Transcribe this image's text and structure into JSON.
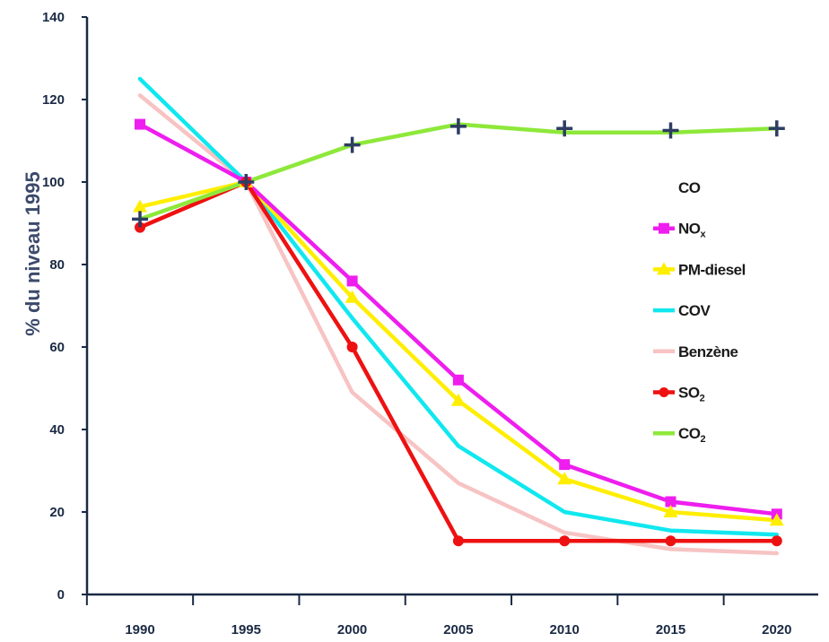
{
  "chart_data": {
    "type": "line",
    "title": "",
    "xlabel": "",
    "ylabel": "% du niveau 1995",
    "ylim": [
      0,
      140
    ],
    "yticks": [
      "0",
      "20",
      "40",
      "60",
      "80",
      "100",
      "120",
      "140"
    ],
    "categories": [
      "1990",
      "1995",
      "2000",
      "2005",
      "2010",
      "2015",
      "2020"
    ],
    "grid": false,
    "legend_position": "right",
    "series": [
      {
        "name": "CO",
        "color": "#2d3d63",
        "marker": "plus",
        "values": [
          91,
          100,
          109,
          113.5,
          113,
          112.5,
          113
        ]
      },
      {
        "name": "NOx",
        "label_main": "NO",
        "label_sub": "x",
        "color": "#ee1eee",
        "marker": "square",
        "values": [
          114,
          100,
          76,
          52,
          31.5,
          22.5,
          19.5
        ]
      },
      {
        "name": "PM-diesel",
        "color": "#ffee00",
        "marker": "triangle",
        "values": [
          94,
          100,
          72,
          47,
          28,
          20,
          18
        ]
      },
      {
        "name": "COV",
        "color": "#11e7ef",
        "marker": "none",
        "values": [
          125,
          100,
          67,
          36,
          20,
          15.5,
          14.5
        ]
      },
      {
        "name": "Benzène",
        "color": "#f7c3c3",
        "marker": "none",
        "values": [
          121,
          100,
          49,
          27,
          15,
          11,
          10
        ]
      },
      {
        "name": "SO2",
        "label_main": "SO",
        "label_sub": "2",
        "color": "#ee1111",
        "marker": "circle",
        "values": [
          89,
          100,
          60,
          13,
          13,
          13,
          13
        ]
      },
      {
        "name": "CO2",
        "label_main": "CO",
        "label_sub": "2",
        "color": "#8ee83a",
        "marker": "none",
        "values": [
          91,
          100,
          109,
          114,
          112,
          112,
          113
        ]
      }
    ]
  }
}
